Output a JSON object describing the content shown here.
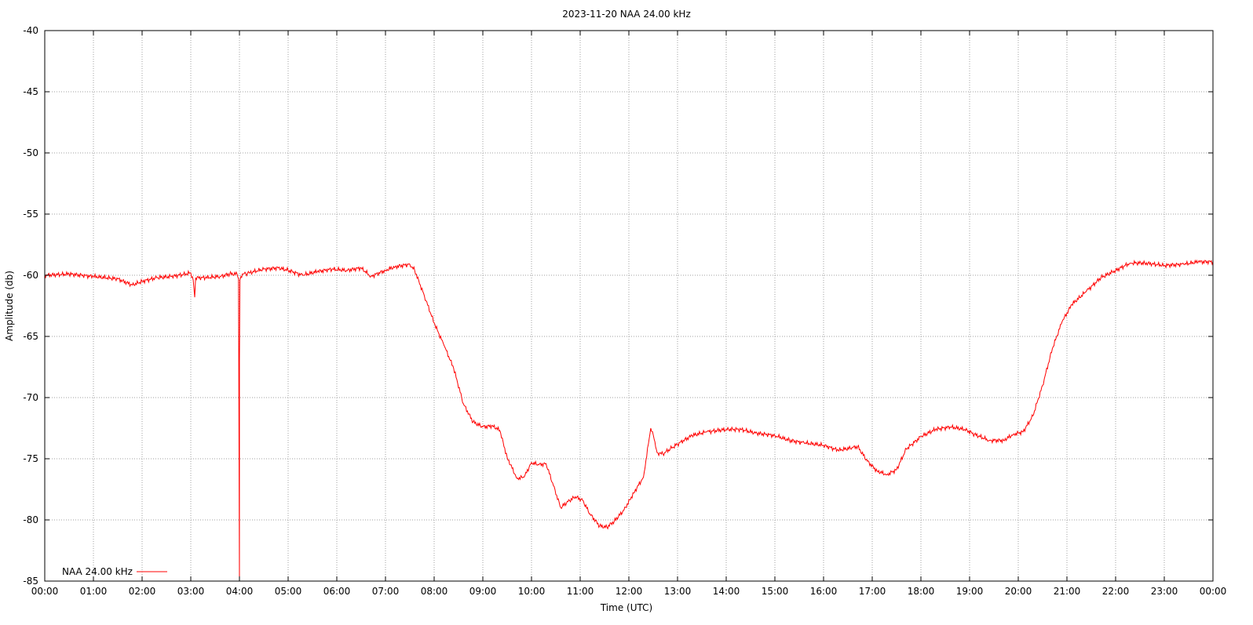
{
  "chart_data": {
    "type": "line",
    "title": "2023-11-20 NAA 24.00 kHz",
    "xlabel": "Time (UTC)",
    "ylabel": "Amplitude (db)",
    "xlim": [
      0,
      24
    ],
    "ylim": [
      -85,
      -40
    ],
    "grid": true,
    "legend_position": "bottom-left",
    "x_tick_labels": [
      "00:00",
      "01:00",
      "02:00",
      "03:00",
      "04:00",
      "05:00",
      "06:00",
      "07:00",
      "08:00",
      "09:00",
      "10:00",
      "11:00",
      "12:00",
      "13:00",
      "14:00",
      "15:00",
      "16:00",
      "17:00",
      "18:00",
      "19:00",
      "20:00",
      "21:00",
      "22:00",
      "23:00",
      "00:00"
    ],
    "y_ticks": [
      -40,
      -45,
      -50,
      -55,
      -60,
      -65,
      -70,
      -75,
      -80,
      -85
    ],
    "series": [
      {
        "name": "NAA 24.00 kHz",
        "color": "#ff0000",
        "x": [
          0,
          0.5,
          1.0,
          1.5,
          1.8,
          2.0,
          2.3,
          2.6,
          2.9,
          3.0,
          3.05,
          3.08,
          3.1,
          3.3,
          3.6,
          3.8,
          3.95,
          3.98,
          4.0,
          4.0,
          4.01,
          4.03,
          4.06,
          4.2,
          4.5,
          4.8,
          5.0,
          5.3,
          5.6,
          5.9,
          6.2,
          6.5,
          6.7,
          7.0,
          7.2,
          7.5,
          7.6,
          7.8,
          8.0,
          8.2,
          8.4,
          8.6,
          8.8,
          9.0,
          9.2,
          9.35,
          9.5,
          9.7,
          9.85,
          10.0,
          10.15,
          10.3,
          10.45,
          10.6,
          10.75,
          10.9,
          11.05,
          11.2,
          11.4,
          11.55,
          11.7,
          11.9,
          12.1,
          12.3,
          12.45,
          12.52,
          12.58,
          12.7,
          12.85,
          13.0,
          13.3,
          13.6,
          14.0,
          14.3,
          14.6,
          15.0,
          15.3,
          15.6,
          16.0,
          16.3,
          16.6,
          16.7,
          16.9,
          17.1,
          17.3,
          17.5,
          17.7,
          18.0,
          18.3,
          18.6,
          18.9,
          19.1,
          19.4,
          19.7,
          19.9,
          20.1,
          20.3,
          20.5,
          20.7,
          20.9,
          21.1,
          21.4,
          21.7,
          22.0,
          22.3,
          22.6,
          23.0,
          23.4,
          23.7,
          24.0
        ],
        "y": [
          -60.0,
          -59.9,
          -60.1,
          -60.3,
          -60.8,
          -60.5,
          -60.2,
          -60.1,
          -59.9,
          -59.8,
          -60.4,
          -61.8,
          -60.2,
          -60.2,
          -60.1,
          -59.9,
          -59.9,
          -60.3,
          -85.0,
          -67.0,
          -60.4,
          -60.1,
          -59.9,
          -59.8,
          -59.5,
          -59.4,
          -59.6,
          -60.0,
          -59.7,
          -59.5,
          -59.6,
          -59.4,
          -60.1,
          -59.6,
          -59.3,
          -59.1,
          -59.6,
          -61.7,
          -63.9,
          -65.7,
          -67.6,
          -70.5,
          -72.0,
          -72.4,
          -72.3,
          -72.7,
          -74.9,
          -76.6,
          -76.5,
          -75.3,
          -75.5,
          -75.4,
          -77.2,
          -79.0,
          -78.5,
          -78.1,
          -78.4,
          -79.5,
          -80.5,
          -80.6,
          -80.1,
          -79.2,
          -77.8,
          -76.5,
          -72.5,
          -73.4,
          -74.5,
          -74.6,
          -74.2,
          -73.8,
          -73.1,
          -72.8,
          -72.6,
          -72.6,
          -72.9,
          -73.1,
          -73.5,
          -73.7,
          -73.9,
          -74.3,
          -74.1,
          -74.0,
          -75.2,
          -76.0,
          -76.3,
          -75.9,
          -74.2,
          -73.2,
          -72.6,
          -72.4,
          -72.6,
          -73.0,
          -73.5,
          -73.5,
          -73.0,
          -72.8,
          -71.5,
          -69.0,
          -66.0,
          -63.8,
          -62.4,
          -61.3,
          -60.2,
          -59.6,
          -59.0,
          -59.0,
          -59.2,
          -59.1,
          -58.9,
          -58.9
        ]
      }
    ]
  }
}
